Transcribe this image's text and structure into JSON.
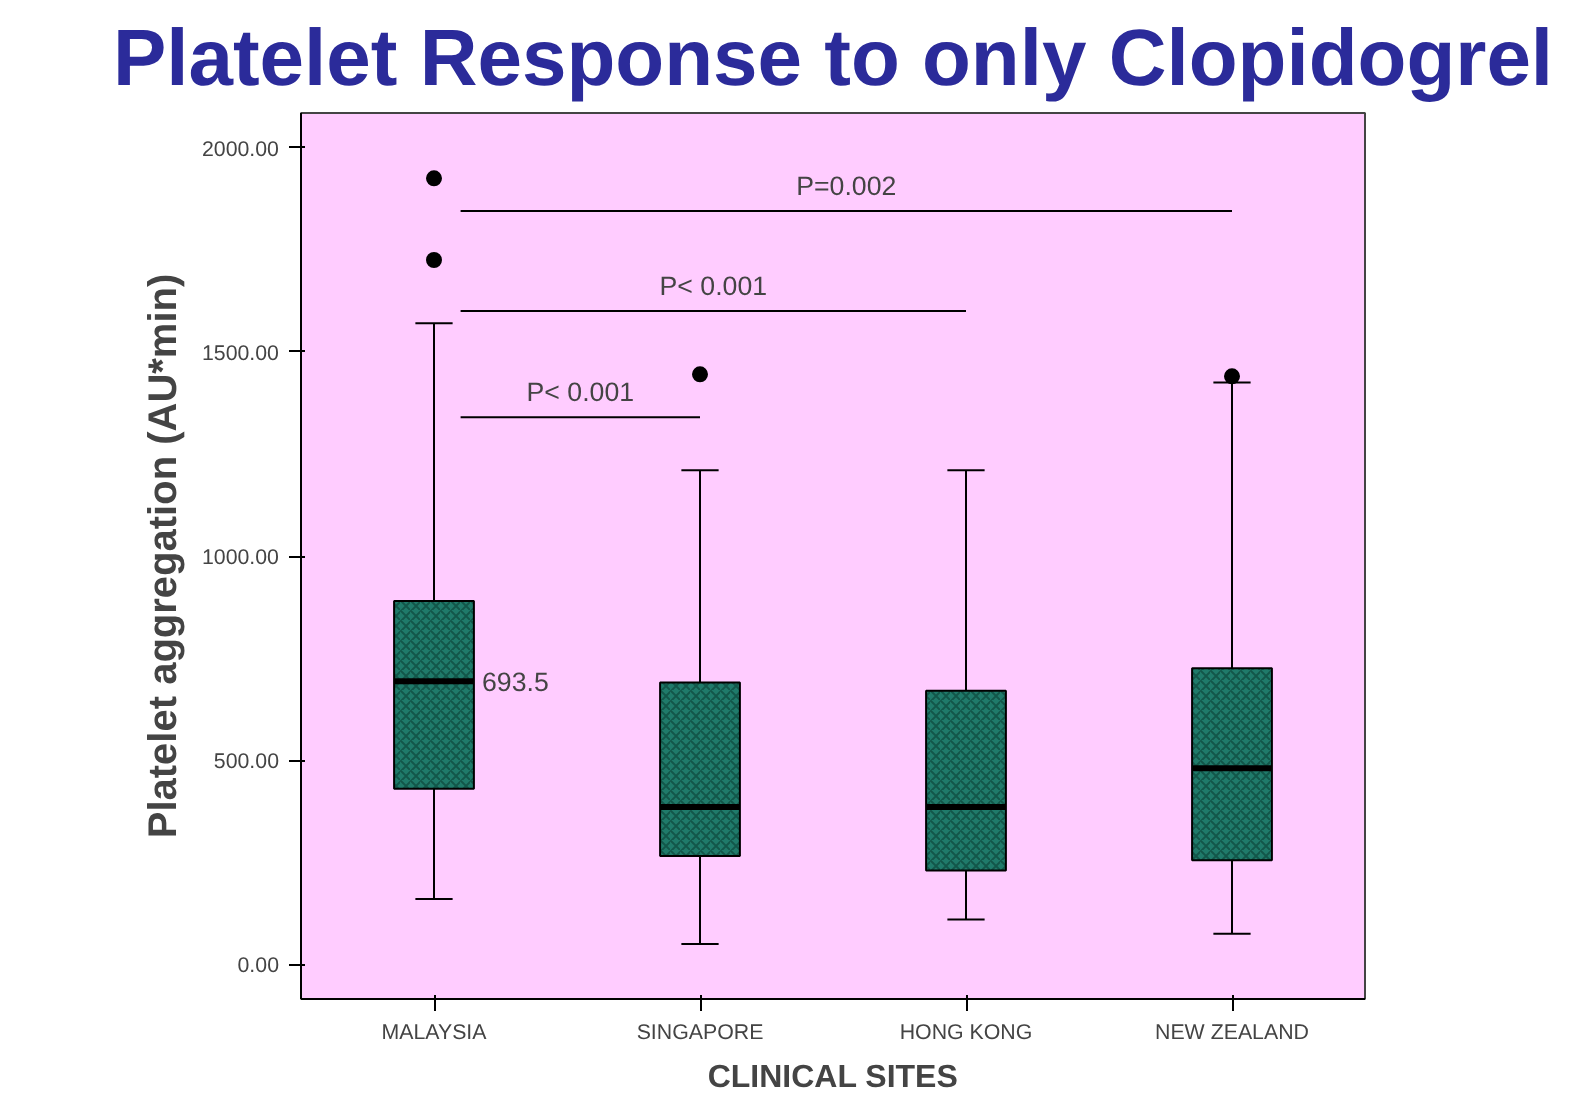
{
  "chart_data": {
    "type": "box",
    "title": "Platelet Response to only Clopidogrel",
    "xlabel": "CLINICAL SITES",
    "ylabel": "Platelet aggregation (AU*min)",
    "categories": [
      "MALAYSIA",
      "SINGAPORE",
      "HONG KONG",
      "NEW ZEALAND"
    ],
    "color": "#1f7a6a",
    "boxes": [
      {
        "low": 160,
        "q1": 430,
        "median": 693.5,
        "q3": 890,
        "high": 1570,
        "outliers": [
          1725,
          1925
        ]
      },
      {
        "low": 50,
        "q1": 265,
        "median": 385,
        "q3": 690,
        "high": 1210,
        "outliers": [
          1445
        ]
      },
      {
        "low": 110,
        "q1": 230,
        "median": 385,
        "q3": 670,
        "high": 1210
      },
      {
        "low": 75,
        "q1": 255,
        "median": 480,
        "q3": 725,
        "high": 1425,
        "outliers": [
          1440
        ]
      }
    ],
    "ylim": [
      -85,
      2085
    ],
    "yticks": [
      {
        "value": 0,
        "label": "0.00"
      },
      {
        "value": 500,
        "label": "500.00"
      },
      {
        "value": 1000,
        "label": "1000.00"
      },
      {
        "value": 1500,
        "label": "1500.00"
      },
      {
        "value": 2000,
        "label": "2000.00"
      }
    ],
    "annotations": [
      "P< 0.001",
      "P< 0.001",
      "P=0.002",
      {
        "text": "693.5",
        "x": "MALAYSIA",
        "y": 693.5
      }
    ]
  }
}
